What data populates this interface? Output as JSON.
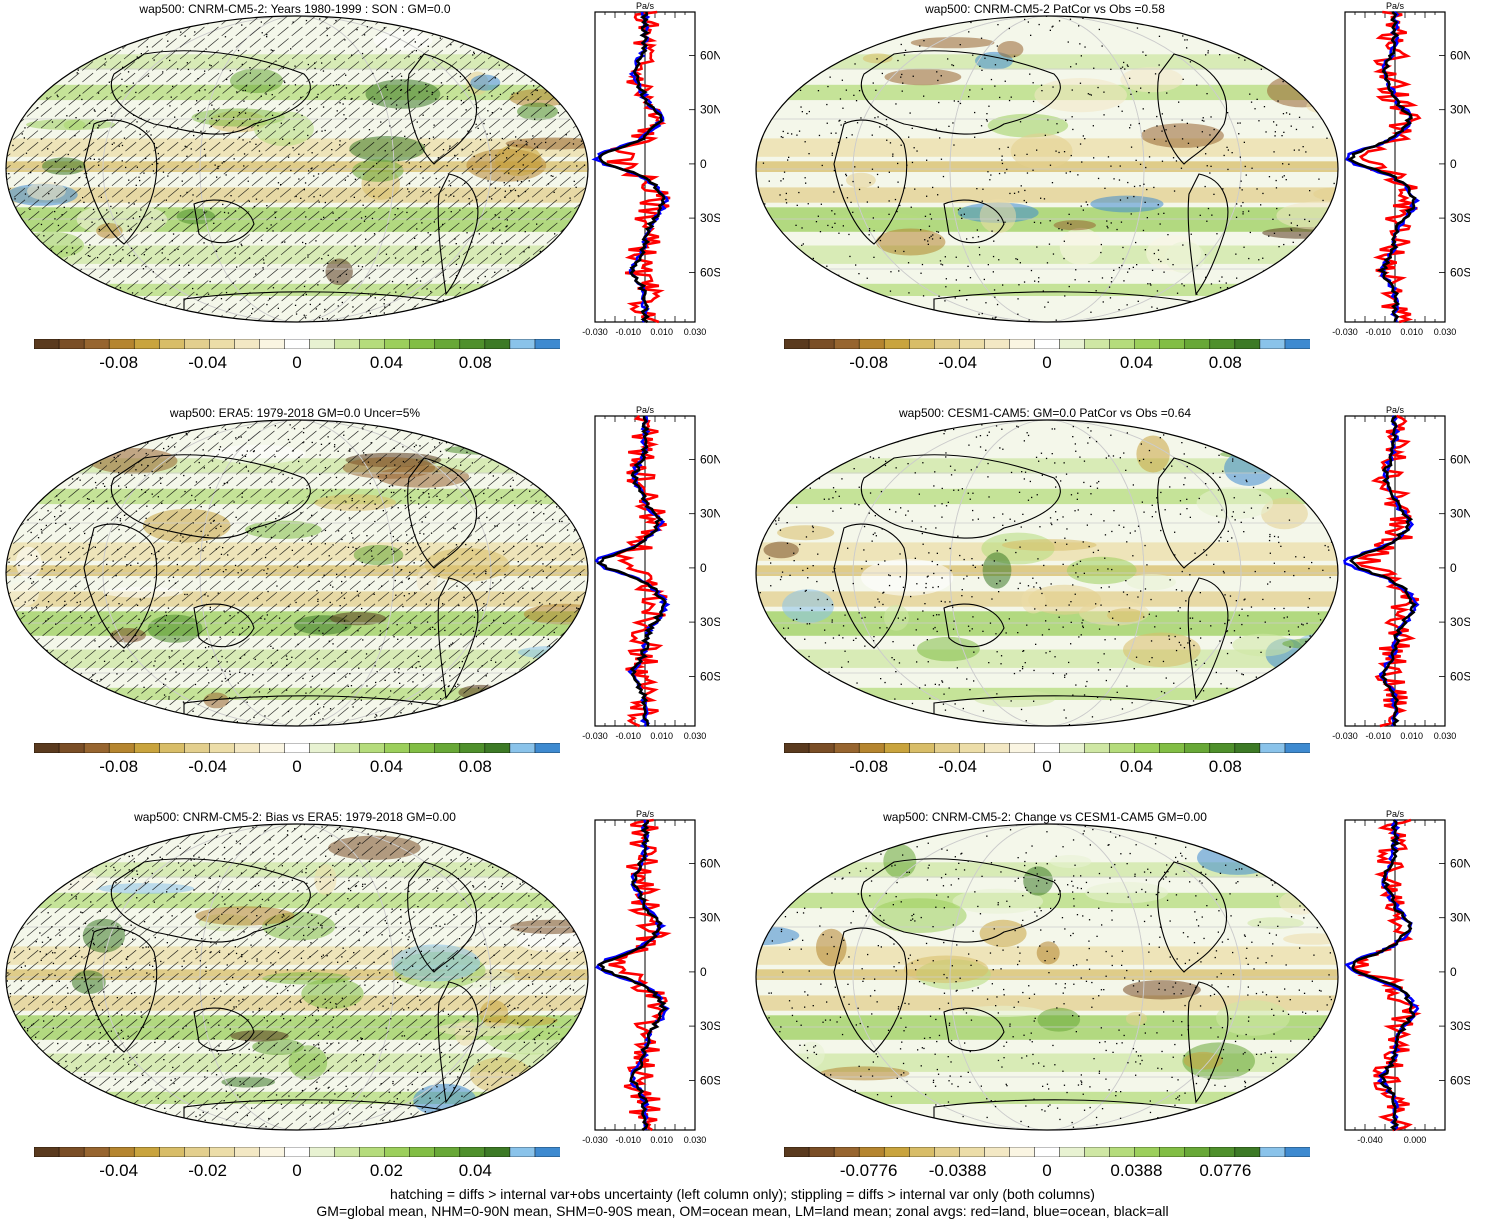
{
  "panels": [
    {
      "title": "wap500: CNRM-CM5-2: Years 1980-1999 : SON : GM=0.0",
      "hatching": true,
      "colorbar_labels": [
        "-0.08",
        "-0.04",
        "0",
        "0.04",
        "0.08"
      ],
      "zonal_ticks": [
        "-0.030",
        "-0.010",
        "0.010",
        "0.030"
      ],
      "zonal_units": "Pa/s"
    },
    {
      "title": "wap500: CNRM-CM5-2 PatCor vs Obs =0.58",
      "hatching": false,
      "colorbar_labels": [
        "-0.08",
        "-0.04",
        "0",
        "0.04",
        "0.08"
      ],
      "zonal_ticks": [
        "-0.030",
        "-0.010",
        "0.010",
        "0.030"
      ],
      "zonal_units": "Pa/s"
    },
    {
      "title": "wap500: ERA5: 1979-2018 GM=0.0 Uncer=5%",
      "hatching": true,
      "colorbar_labels": [
        "-0.08",
        "-0.04",
        "0",
        "0.04",
        "0.08"
      ],
      "zonal_ticks": [
        "-0.030",
        "-0.010",
        "0.010",
        "0.030"
      ],
      "zonal_units": "Pa/s"
    },
    {
      "title": "wap500: CESM1-CAM5: GM=0.0 PatCor vs Obs =0.64",
      "hatching": false,
      "colorbar_labels": [
        "-0.08",
        "-0.04",
        "0",
        "0.04",
        "0.08"
      ],
      "zonal_ticks": [
        "-0.030",
        "-0.010",
        "0.010",
        "0.030"
      ],
      "zonal_units": "Pa/s"
    },
    {
      "title": "wap500: CNRM-CM5-2: Bias vs ERA5: 1979-2018  GM=0.00",
      "hatching": true,
      "colorbar_labels": [
        "-0.04",
        "-0.02",
        "0",
        "0.02",
        "0.04"
      ],
      "zonal_ticks": [
        "-0.030",
        "-0.010",
        "0.010",
        "0.030"
      ],
      "zonal_units": "Pa/s"
    },
    {
      "title": "wap500: CNRM-CM5-2: Change vs CESM1-CAM5 GM=0.00",
      "hatching": false,
      "colorbar_labels": [
        "-0.0776",
        "-0.0388",
        "0",
        "0.0388",
        "0.0776"
      ],
      "zonal_ticks": [
        "-0.040",
        "0.000"
      ],
      "zonal_units": "Pa/s"
    }
  ],
  "lat_labels": [
    "60N",
    "30N",
    "0",
    "30S",
    "60S"
  ],
  "colors": {
    "scale": [
      "#5a3a1e",
      "#7a4e26",
      "#97652f",
      "#b5852f",
      "#c9a43e",
      "#d8bd68",
      "#e3cf8e",
      "#ecdda8",
      "#f3e8c4",
      "#faf5e2",
      "#ffffff",
      "#e8f2d2",
      "#cfe7a4",
      "#b5dc7c",
      "#9ccf5c",
      "#82be45",
      "#68a837",
      "#4f902c",
      "#3d7a26",
      "#8ac3ea",
      "#3e8ad0"
    ],
    "land_line": "red",
    "ocean_line": "blue",
    "all_line": "black"
  },
  "footer": [
    "hatching = diffs > internal var+obs uncertainty (left column only); stippling = diffs > internal var only (both columns)",
    "GM=global mean, NHM=0-90N mean, SHM=0-90S mean, OM=ocean mean, LM=land mean; zonal avgs: red=land, blue=ocean, black=all"
  ]
}
